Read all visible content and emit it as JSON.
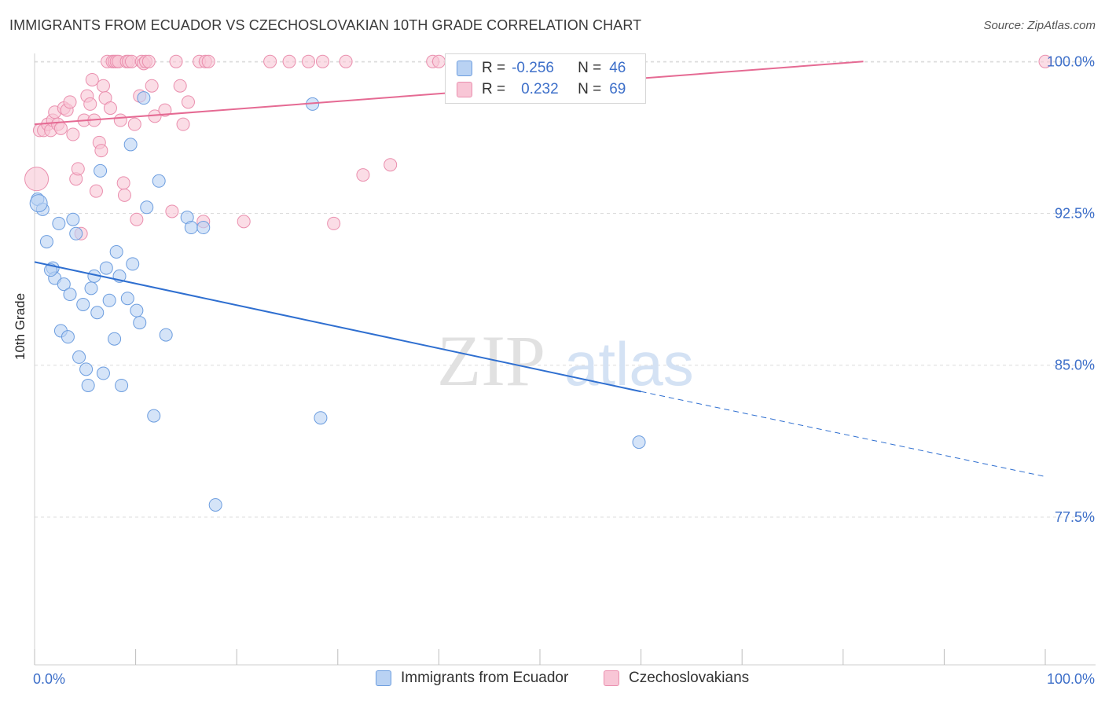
{
  "title": "IMMIGRANTS FROM ECUADOR VS CZECHOSLOVAKIAN 10TH GRADE CORRELATION CHART",
  "source": "Source: ZipAtlas.com",
  "watermark": {
    "zip": "ZIP",
    "atlas": "atlas"
  },
  "legend": {
    "rows": [
      {
        "r_label": "R =",
        "r_value": "-0.256",
        "n_label": "N =",
        "n_value": "46"
      },
      {
        "r_label": "R =",
        "r_value": "0.232",
        "n_label": "N =",
        "n_value": "69"
      }
    ]
  },
  "bottom_legend": {
    "series1": "Immigrants from Ecuador",
    "series2": "Czechoslovakians"
  },
  "colors": {
    "blue_fill": "#b9d2f3",
    "blue_stroke": "#6c9ddf",
    "blue_line": "#2f6fd0",
    "pink_fill": "#f8c6d6",
    "pink_stroke": "#ea8fae",
    "pink_line": "#e56a93",
    "axis_text": "#3d6fc9",
    "grid": "#dcdcdc"
  },
  "chart_data": {
    "type": "scatter",
    "title": "IMMIGRANTS FROM ECUADOR VS CZECHOSLOVAKIAN 10TH GRADE CORRELATION CHART",
    "xlabel": "",
    "ylabel": "10th Grade",
    "xlim": [
      0,
      100
    ],
    "ylim": [
      70.2,
      100.4
    ],
    "x_tick_labels": [
      "0.0%",
      "100.0%"
    ],
    "y_ticks": [
      77.5,
      85.0,
      92.5,
      100.0
    ],
    "y_tick_labels": [
      "77.5%",
      "85.0%",
      "92.5%",
      "100.0%"
    ],
    "grid": "horizontal dashed",
    "legend_placement": "top-center",
    "series": [
      {
        "name": "Immigrants from Ecuador",
        "color": "blue",
        "points": [
          [
            0.3,
            93.2
          ],
          [
            0.8,
            92.7
          ],
          [
            1.2,
            91.1
          ],
          [
            1.8,
            89.8
          ],
          [
            2.0,
            89.3
          ],
          [
            2.4,
            92.0
          ],
          [
            2.6,
            86.7
          ],
          [
            2.9,
            89.0
          ],
          [
            3.3,
            86.4
          ],
          [
            3.5,
            88.5
          ],
          [
            3.8,
            92.2
          ],
          [
            4.1,
            91.5
          ],
          [
            4.4,
            85.4
          ],
          [
            4.8,
            88.0
          ],
          [
            5.1,
            84.8
          ],
          [
            5.3,
            84.0
          ],
          [
            5.6,
            88.8
          ],
          [
            5.9,
            89.4
          ],
          [
            6.2,
            87.6
          ],
          [
            6.8,
            84.6
          ],
          [
            7.1,
            89.8
          ],
          [
            7.4,
            88.2
          ],
          [
            7.9,
            86.3
          ],
          [
            8.1,
            90.6
          ],
          [
            8.4,
            89.4
          ],
          [
            8.6,
            84.0
          ],
          [
            9.2,
            88.3
          ],
          [
            9.5,
            95.9
          ],
          [
            9.7,
            90.0
          ],
          [
            10.1,
            87.7
          ],
          [
            10.4,
            87.1
          ],
          [
            10.8,
            98.2
          ],
          [
            11.1,
            92.8
          ],
          [
            11.8,
            82.5
          ],
          [
            12.3,
            94.1
          ],
          [
            13.0,
            86.5
          ],
          [
            15.1,
            92.3
          ],
          [
            15.5,
            91.8
          ],
          [
            16.7,
            91.8
          ],
          [
            17.9,
            78.1
          ],
          [
            27.5,
            97.9
          ],
          [
            28.3,
            82.4
          ],
          [
            59.8,
            81.2
          ],
          [
            6.5,
            94.6
          ],
          [
            1.6,
            89.7
          ],
          [
            0.4,
            93.0
          ]
        ],
        "trend": {
          "x": [
            0,
            60
          ],
          "y": [
            90.1,
            83.7
          ],
          "dashed_to": [
            100,
            79.5
          ]
        }
      },
      {
        "name": "Czechoslovakians",
        "color": "pink",
        "points": [
          [
            0.2,
            94.2
          ],
          [
            0.5,
            96.6
          ],
          [
            0.9,
            96.6
          ],
          [
            1.3,
            96.9
          ],
          [
            1.6,
            96.6
          ],
          [
            1.8,
            97.1
          ],
          [
            2.0,
            97.5
          ],
          [
            2.3,
            96.9
          ],
          [
            2.6,
            96.7
          ],
          [
            2.9,
            97.7
          ],
          [
            3.2,
            97.6
          ],
          [
            3.5,
            98.0
          ],
          [
            3.8,
            96.4
          ],
          [
            4.1,
            94.2
          ],
          [
            4.3,
            94.7
          ],
          [
            4.6,
            91.5
          ],
          [
            4.9,
            97.1
          ],
          [
            5.2,
            98.3
          ],
          [
            5.5,
            97.9
          ],
          [
            5.7,
            99.1
          ],
          [
            5.9,
            97.1
          ],
          [
            6.1,
            93.6
          ],
          [
            6.4,
            96.0
          ],
          [
            6.6,
            95.6
          ],
          [
            6.8,
            98.8
          ],
          [
            7.0,
            98.2
          ],
          [
            7.2,
            100.0
          ],
          [
            7.5,
            97.7
          ],
          [
            7.7,
            100.0
          ],
          [
            7.9,
            100.0
          ],
          [
            8.1,
            100.0
          ],
          [
            8.3,
            100.0
          ],
          [
            8.5,
            97.1
          ],
          [
            8.8,
            94.0
          ],
          [
            8.9,
            93.4
          ],
          [
            9.1,
            100.0
          ],
          [
            9.3,
            100.0
          ],
          [
            9.6,
            100.0
          ],
          [
            9.9,
            96.9
          ],
          [
            10.1,
            92.2
          ],
          [
            10.4,
            98.3
          ],
          [
            10.6,
            100.0
          ],
          [
            10.8,
            99.9
          ],
          [
            11.0,
            100.0
          ],
          [
            11.3,
            100.0
          ],
          [
            11.6,
            98.8
          ],
          [
            11.9,
            97.3
          ],
          [
            12.9,
            97.6
          ],
          [
            13.6,
            92.6
          ],
          [
            14.0,
            100.0
          ],
          [
            14.4,
            98.8
          ],
          [
            14.7,
            96.9
          ],
          [
            15.2,
            98.0
          ],
          [
            16.3,
            100.0
          ],
          [
            16.7,
            92.1
          ],
          [
            16.9,
            100.0
          ],
          [
            17.2,
            100.0
          ],
          [
            20.7,
            92.1
          ],
          [
            23.3,
            100.0
          ],
          [
            25.2,
            100.0
          ],
          [
            27.1,
            100.0
          ],
          [
            28.5,
            100.0
          ],
          [
            29.6,
            92.0
          ],
          [
            30.8,
            100.0
          ],
          [
            32.5,
            94.4
          ],
          [
            35.2,
            94.9
          ],
          [
            39.4,
            100.0
          ],
          [
            40.0,
            100.0
          ],
          [
            100.0,
            100.0
          ]
        ],
        "trend": {
          "x": [
            0,
            82
          ],
          "y": [
            96.9,
            100.0
          ]
        }
      }
    ]
  }
}
